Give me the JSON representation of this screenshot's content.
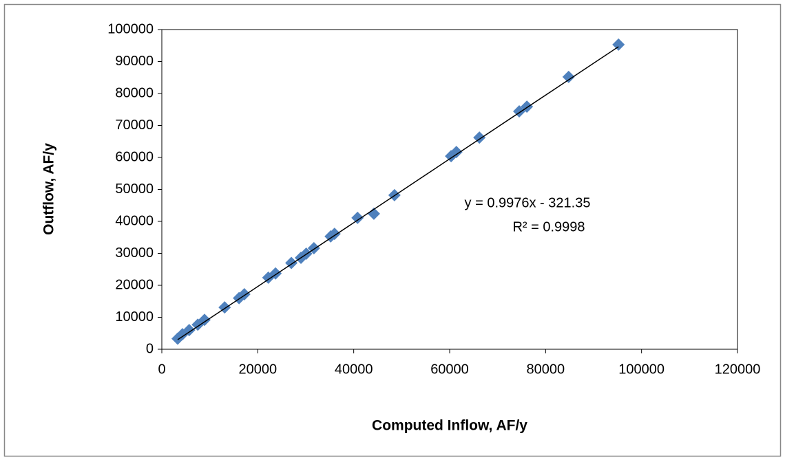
{
  "chart_data": {
    "type": "scatter",
    "x_label": "Computed Inflow, AF/y",
    "y_label": "Outflow, AF/y",
    "xlim": [
      0,
      120000
    ],
    "xticks": [
      0,
      20000,
      40000,
      60000,
      80000,
      100000,
      120000
    ],
    "ylim": [
      0,
      100000
    ],
    "yticks": [
      0,
      10000,
      20000,
      30000,
      40000,
      50000,
      60000,
      70000,
      80000,
      90000,
      100000
    ],
    "grid": false,
    "series": [
      {
        "color": "#4f81bd",
        "x": [
          3300,
          4300,
          5700,
          7500,
          8900,
          13100,
          16100,
          17200,
          22200,
          23700,
          27000,
          29000,
          30100,
          31700,
          35200,
          36000,
          40800,
          44200,
          48500,
          60300,
          61400,
          66200,
          74500,
          76100,
          84800,
          95200
        ],
        "values": [
          3300,
          4700,
          6000,
          7700,
          9200,
          13100,
          16000,
          17200,
          22400,
          23700,
          27000,
          28600,
          29900,
          31600,
          35300,
          36100,
          41100,
          42400,
          48200,
          60400,
          61700,
          66200,
          74400,
          75900,
          85200,
          95300
        ]
      }
    ],
    "trendline": {
      "slope": 0.9976,
      "intercept": -321.35,
      "color": "#000000"
    },
    "annotations": [
      "y = 0.9976x - 321.35",
      "R² = 0.9998"
    ]
  }
}
